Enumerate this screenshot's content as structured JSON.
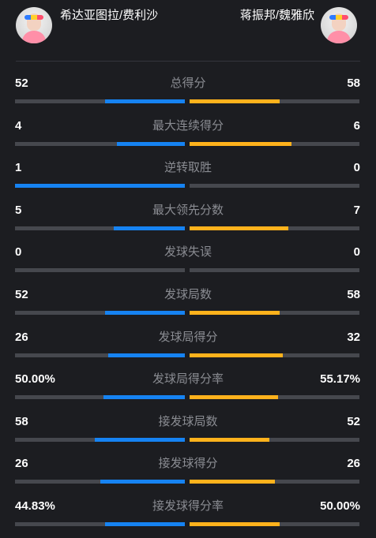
{
  "header": {
    "left_team": "希达亚图拉/费利沙",
    "right_team": "蒋振邦/魏雅欣",
    "left_avatar_icon": "player-avatar-icon",
    "right_avatar_icon": "player-avatar-icon"
  },
  "colors": {
    "left_accent": "#1683f2",
    "right_accent": "#ffb21c",
    "track": "#46484e",
    "background": "#1c1d21"
  },
  "stats": [
    {
      "label": "总得分",
      "left": "52",
      "right": "58",
      "left_share": 0.47,
      "right_share": 0.53
    },
    {
      "label": "最大连续得分",
      "left": "4",
      "right": "6",
      "left_share": 0.4,
      "right_share": 0.6
    },
    {
      "label": "逆转取胜",
      "left": "1",
      "right": "0",
      "left_share": 1.0,
      "right_share": 0.0
    },
    {
      "label": "最大领先分数",
      "left": "5",
      "right": "7",
      "left_share": 0.42,
      "right_share": 0.58
    },
    {
      "label": "发球失误",
      "left": "0",
      "right": "0",
      "left_share": 0.0,
      "right_share": 0.0
    },
    {
      "label": "发球局数",
      "left": "52",
      "right": "58",
      "left_share": 0.47,
      "right_share": 0.53
    },
    {
      "label": "发球局得分",
      "left": "26",
      "right": "32",
      "left_share": 0.45,
      "right_share": 0.55
    },
    {
      "label": "发球局得分率",
      "left": "50.00%",
      "right": "55.17%",
      "left_share": 0.48,
      "right_share": 0.52
    },
    {
      "label": "接发球局数",
      "left": "58",
      "right": "52",
      "left_share": 0.53,
      "right_share": 0.47
    },
    {
      "label": "接发球得分",
      "left": "26",
      "right": "26",
      "left_share": 0.5,
      "right_share": 0.5
    },
    {
      "label": "接发球得分率",
      "left": "44.83%",
      "right": "50.00%",
      "left_share": 0.47,
      "right_share": 0.53
    }
  ]
}
